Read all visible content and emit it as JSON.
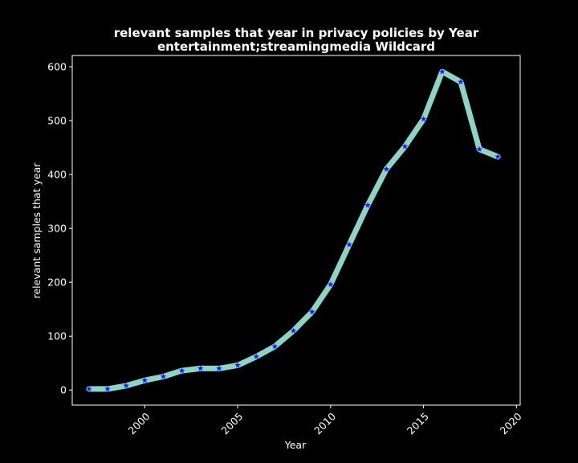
{
  "chart_data": {
    "type": "line",
    "title": "relevant samples that year in privacy policies by Year",
    "subtitle": "entertainment;streamingmedia Wildcard",
    "xlabel": "Year",
    "ylabel": "relevant samples that year",
    "xlim": [
      1996.1,
      2020.2
    ],
    "ylim": [
      -28,
      621
    ],
    "xticks": [
      2000,
      2005,
      2010,
      2015,
      2020
    ],
    "yticks": [
      0,
      100,
      200,
      300,
      400,
      500,
      600
    ],
    "grid": false,
    "line_color": "#8dd3c7",
    "marker_color": "#1a1aff",
    "marker": "star",
    "x": [
      1997,
      1998,
      1999,
      2000,
      2001,
      2002,
      2003,
      2004,
      2005,
      2006,
      2007,
      2008,
      2009,
      2010,
      2011,
      2012,
      2013,
      2014,
      2015,
      2016,
      2017,
      2018,
      2019
    ],
    "series": [
      {
        "values": [
          2,
          2,
          8,
          18,
          25,
          36,
          40,
          40,
          46,
          62,
          81,
          110,
          145,
          196,
          270,
          343,
          410,
          452,
          503,
          591,
          572,
          447,
          433
        ]
      }
    ]
  }
}
